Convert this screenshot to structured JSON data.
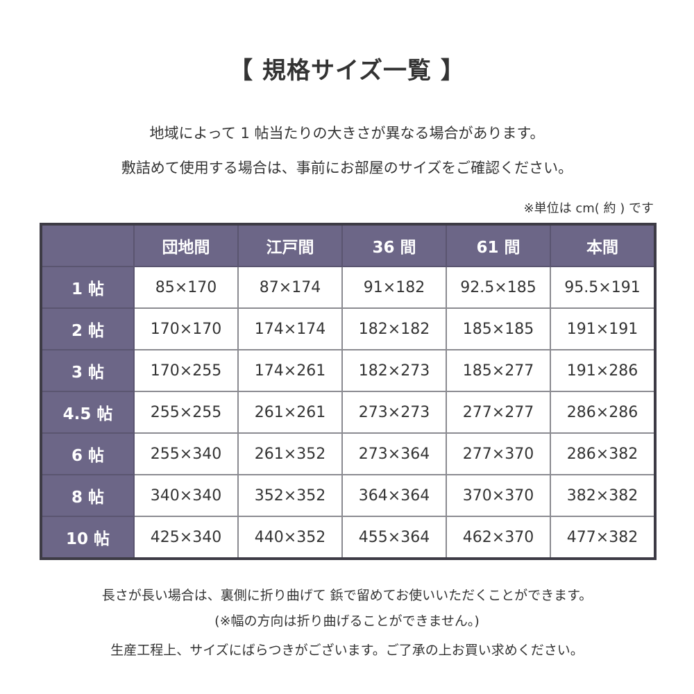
{
  "title": "【 規格サイズ一覧 】",
  "intro": [
    "地域によって 1 帖当たりの大きさが異なる場合があります。",
    "敷詰めて使用する場合は、事前にお部屋のサイズをご確認ください。"
  ],
  "unit_note": "※単位は cm( 約 ) です",
  "table": {
    "columns": [
      "団地間",
      "江戸間",
      "36 間",
      "61 間",
      "本間"
    ],
    "rows": [
      {
        "label": "1 帖",
        "cells": [
          "85×170",
          "87×174",
          "91×182",
          "92.5×185",
          "95.5×191"
        ]
      },
      {
        "label": "2 帖",
        "cells": [
          "170×170",
          "174×174",
          "182×182",
          "185×185",
          "191×191"
        ]
      },
      {
        "label": "3 帖",
        "cells": [
          "170×255",
          "174×261",
          "182×273",
          "185×277",
          "191×286"
        ]
      },
      {
        "label": "4.5 帖",
        "cells": [
          "255×255",
          "261×261",
          "273×273",
          "277×277",
          "286×286"
        ]
      },
      {
        "label": "6 帖",
        "cells": [
          "255×340",
          "261×352",
          "273×364",
          "277×370",
          "286×382"
        ]
      },
      {
        "label": "8 帖",
        "cells": [
          "340×340",
          "352×352",
          "364×364",
          "370×370",
          "382×382"
        ]
      },
      {
        "label": "10 帖",
        "cells": [
          "425×340",
          "440×352",
          "455×364",
          "462×370",
          "477×382"
        ]
      }
    ]
  },
  "notes": [
    "長さが長い場合は、裏側に折り曲げて 鋲で留めてお使いいただくことができます。",
    "(※幅の方向は折り曲げることができません。)",
    "生産工程上、サイズにばらつきがございます。ご了承の上お買い求めください。"
  ],
  "colors": {
    "header_bg": "#6c6687",
    "border": "#3d3b45"
  }
}
